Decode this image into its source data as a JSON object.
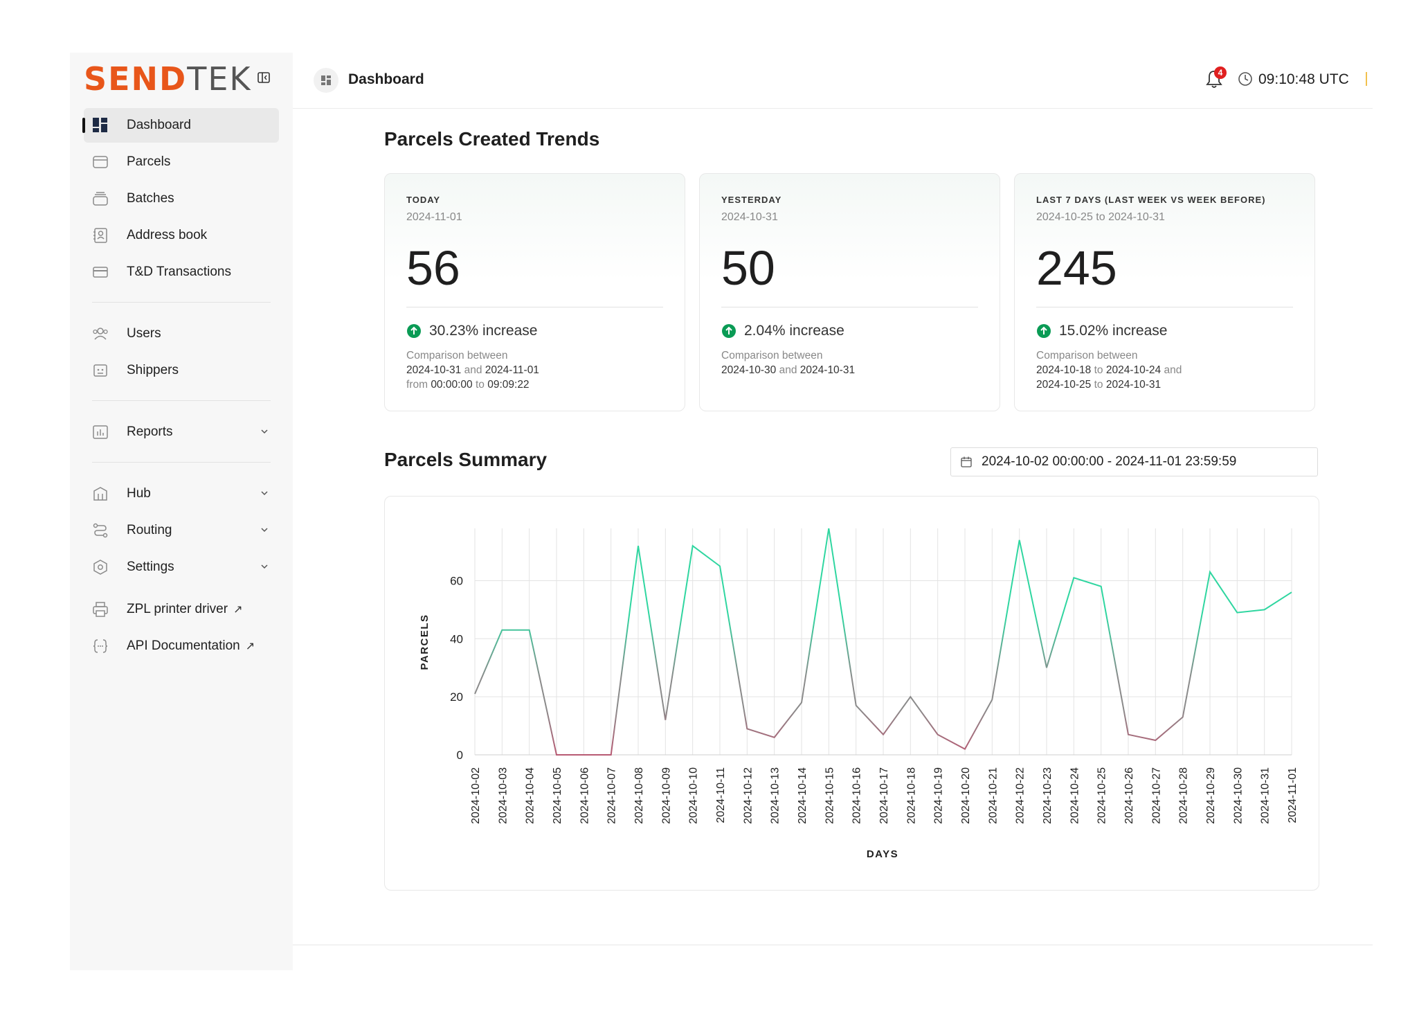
{
  "brand": {
    "part1": "SEND",
    "part2": "TEK"
  },
  "sidebar": {
    "items": [
      {
        "label": "Dashboard",
        "icon": "dashboard-icon"
      },
      {
        "label": "Parcels",
        "icon": "parcel-icon"
      },
      {
        "label": "Batches",
        "icon": "batches-icon"
      },
      {
        "label": "Address book",
        "icon": "address-book-icon"
      },
      {
        "label": "T&D Transactions",
        "icon": "card-icon"
      },
      {
        "label": "Users",
        "icon": "users-icon"
      },
      {
        "label": "Shippers",
        "icon": "shippers-icon"
      },
      {
        "label": "Reports",
        "icon": "reports-icon"
      },
      {
        "label": "Hub",
        "icon": "hub-icon"
      },
      {
        "label": "Routing",
        "icon": "routing-icon"
      },
      {
        "label": "Settings",
        "icon": "settings-icon"
      },
      {
        "label": "ZPL printer driver",
        "icon": "printer-icon"
      },
      {
        "label": "API Documentation",
        "icon": "code-icon"
      }
    ],
    "external_arrow": "↗"
  },
  "header": {
    "title": "Dashboard",
    "notifications": "4",
    "time": "09:10:48 UTC"
  },
  "trends": {
    "title": "Parcels Created Trends",
    "cards": [
      {
        "caption": "TODAY",
        "date": "2024-11-01",
        "value": "56",
        "change": "30.23% increase",
        "cmp_label": "Comparison between",
        "a": "2024-10-31",
        "and": "and",
        "b": "2024-11-01",
        "from": "from",
        "t1": "00:00:00",
        "to": "to",
        "t2": "09:09:22"
      },
      {
        "caption": "YESTERDAY",
        "date": "2024-10-31",
        "value": "50",
        "change": "2.04% increase",
        "cmp_label": "Comparison between",
        "a": "2024-10-30",
        "and": "and",
        "b": "2024-10-31"
      },
      {
        "caption": "LAST 7 DAYS (LAST WEEK VS WEEK BEFORE)",
        "date": "2024-10-25 to 2024-10-31",
        "value": "245",
        "change": "15.02% increase",
        "cmp_label": "Comparison between",
        "a": "2024-10-18",
        "to": "to",
        "b": "2024-10-24",
        "and": "and",
        "c": "2024-10-25",
        "to2": "to",
        "d": "2024-10-31"
      }
    ]
  },
  "summary": {
    "title": "Parcels Summary",
    "range": "2024-10-02 00:00:00 - 2024-11-01 23:59:59"
  },
  "colors": {
    "up": "#00a86b",
    "down": "#c0506e",
    "accent": "#e8561a"
  },
  "chart_data": {
    "type": "line",
    "xlabel": "DAYS",
    "ylabel": "PARCELS",
    "yticks": [
      0,
      20,
      40,
      60
    ],
    "ylim": [
      0,
      78
    ],
    "grid": true,
    "x": [
      "2024-10-02",
      "2024-10-03",
      "2024-10-04",
      "2024-10-05",
      "2024-10-06",
      "2024-10-07",
      "2024-10-08",
      "2024-10-09",
      "2024-10-10",
      "2024-10-11",
      "2024-10-12",
      "2024-10-13",
      "2024-10-14",
      "2024-10-15",
      "2024-10-16",
      "2024-10-17",
      "2024-10-18",
      "2024-10-19",
      "2024-10-20",
      "2024-10-21",
      "2024-10-22",
      "2024-10-23",
      "2024-10-24",
      "2024-10-25",
      "2024-10-26",
      "2024-10-27",
      "2024-10-28",
      "2024-10-29",
      "2024-10-30",
      "2024-10-31",
      "2024-11-01"
    ],
    "series": [
      {
        "values": [
          21,
          43,
          43,
          0,
          0,
          0,
          72,
          12,
          72,
          65,
          9,
          6,
          18,
          78,
          17,
          7,
          20,
          7,
          2,
          19,
          74,
          30,
          61,
          58,
          7,
          5,
          13,
          63,
          49,
          50,
          56
        ]
      }
    ]
  }
}
